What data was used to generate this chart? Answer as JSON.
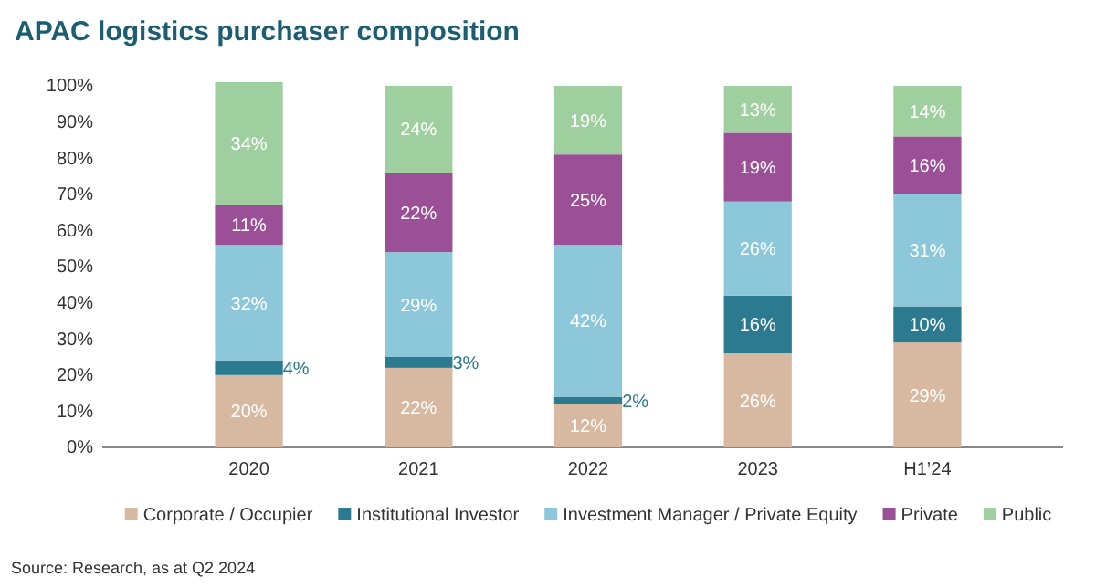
{
  "chart_data": {
    "type": "bar",
    "stacked": true,
    "title": "APAC logistics purchaser composition",
    "categories": [
      "2020",
      "2021",
      "2022",
      "2023",
      "H1’24"
    ],
    "series": [
      {
        "name": "Corporate / Occupier",
        "color": "#d7b8a0",
        "values": [
          20,
          22,
          12,
          26,
          29
        ],
        "value_labels": [
          "20%",
          "22%",
          "12%",
          "26%",
          "29%"
        ]
      },
      {
        "name": "Institutional Investor",
        "color": "#2c7a8f",
        "values": [
          4,
          3,
          2,
          16,
          10
        ],
        "value_labels": [
          "4%",
          "3%",
          "2%",
          "16%",
          "10%"
        ]
      },
      {
        "name": "Investment Manager / Private Equity",
        "color": "#8dc8da",
        "values": [
          32,
          29,
          42,
          26,
          31
        ],
        "value_labels": [
          "32%",
          "29%",
          "42%",
          "26%",
          "31%"
        ]
      },
      {
        "name": "Private",
        "color": "#9a4f96",
        "values": [
          11,
          22,
          25,
          19,
          16
        ],
        "value_labels": [
          "11%",
          "22%",
          "25%",
          "19%",
          "16%"
        ]
      },
      {
        "name": "Public",
        "color": "#9fcf9f",
        "values": [
          34,
          24,
          19,
          13,
          14
        ],
        "value_labels": [
          "34%",
          "24%",
          "19%",
          "13%",
          "14%"
        ]
      }
    ],
    "ylim": [
      0,
      101
    ],
    "yticks": [
      {
        "value": 0,
        "label": "0%"
      },
      {
        "value": 10,
        "label": "10%"
      },
      {
        "value": 20,
        "label": "20%"
      },
      {
        "value": 30,
        "label": "30%"
      },
      {
        "value": 40,
        "label": "40%"
      },
      {
        "value": 50,
        "label": "50%"
      },
      {
        "value": 60,
        "label": "60%"
      },
      {
        "value": 70,
        "label": "70%"
      },
      {
        "value": 80,
        "label": "80%"
      },
      {
        "value": 90,
        "label": "90%"
      },
      {
        "value": 100,
        "label": "100%"
      }
    ],
    "grid": false,
    "legend": "bottom",
    "annotations": [
      "Source: Research, as at Q2 2024"
    ]
  }
}
